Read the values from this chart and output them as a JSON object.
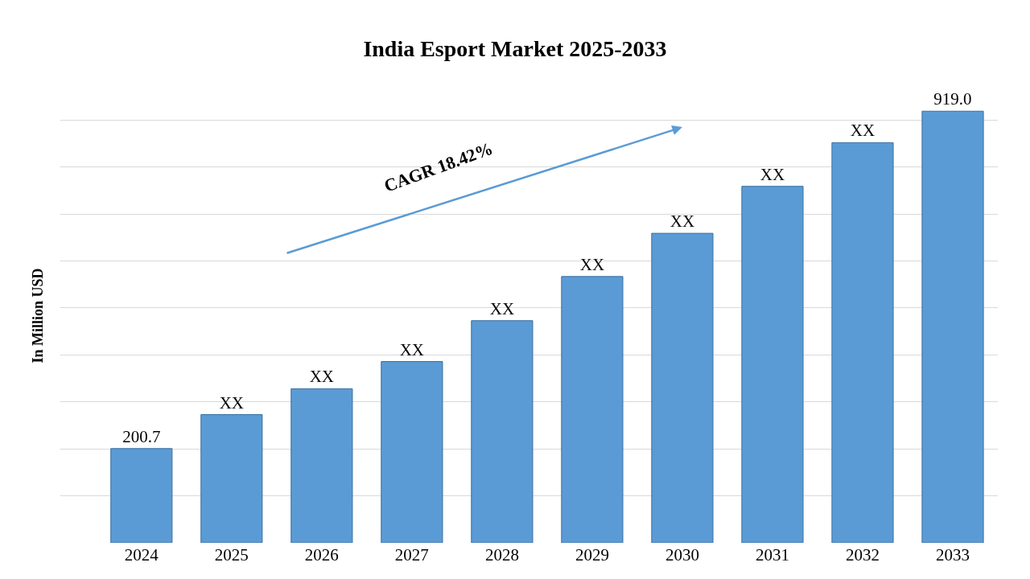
{
  "chart_data": {
    "type": "bar",
    "title": "India Esport Market 2025-2033",
    "ylabel": "In Million USD",
    "categories": [
      "2024",
      "2025",
      "2026",
      "2027",
      "2028",
      "2029",
      "2030",
      "2031",
      "2032",
      "2033"
    ],
    "values": [
      200.7,
      273,
      328,
      386,
      473,
      567,
      659,
      759,
      852,
      919.0
    ],
    "value_labels": [
      "200.7",
      "XX",
      "XX",
      "XX",
      "XX",
      "XX",
      "XX",
      "XX",
      "XX",
      "919.0"
    ],
    "color": "#5b9bd5",
    "grid": "y",
    "tick_labels": "x",
    "annotations": [
      "CAGR 18.42%"
    ]
  }
}
